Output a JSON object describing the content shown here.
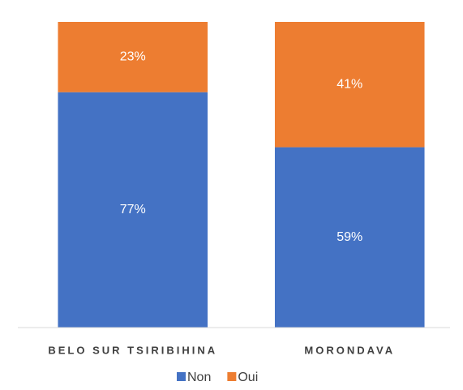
{
  "chart_data": {
    "type": "stacked_bar",
    "categories": [
      "BELO SUR TSIRIBIHINA",
      "MORONDAVA"
    ],
    "series": [
      {
        "name": "Non",
        "color": "#4472c4",
        "values": [
          77,
          59
        ],
        "value_labels": [
          "77%",
          "59%"
        ]
      },
      {
        "name": "Oui",
        "color": "#ed7d31",
        "values": [
          23,
          41
        ],
        "value_labels": [
          "23%",
          "41%"
        ]
      }
    ],
    "ylim": [
      0,
      100
    ],
    "legend": "bottom"
  }
}
